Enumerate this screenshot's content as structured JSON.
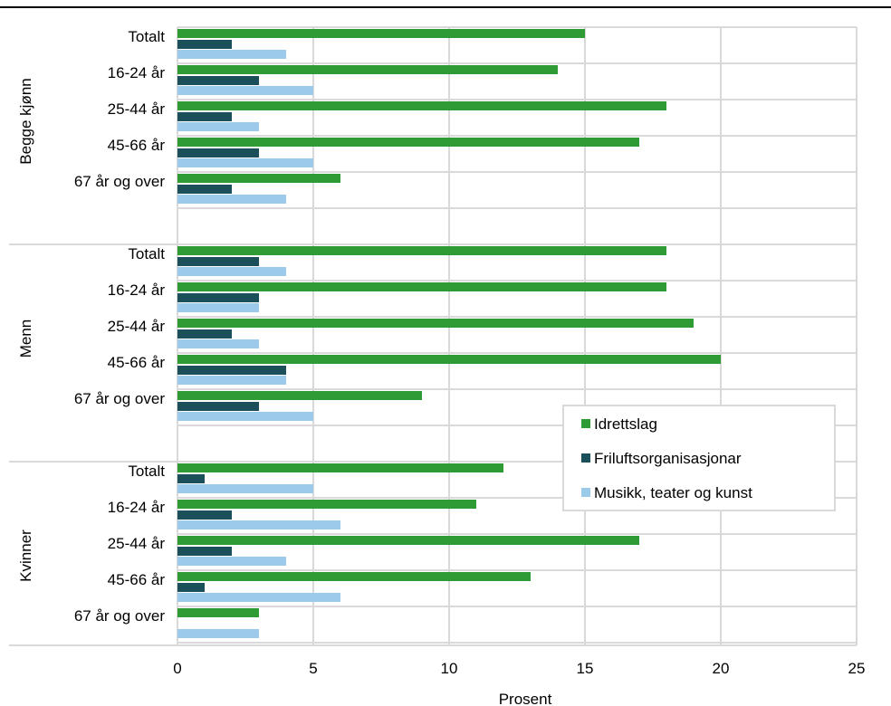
{
  "chart_data": {
    "type": "bar",
    "orientation": "horizontal",
    "title": "",
    "xlabel": "Prosent",
    "ylabel": "",
    "xlim": [
      0,
      25
    ],
    "x_ticks": [
      0,
      5,
      10,
      15,
      20,
      25
    ],
    "grid": true,
    "legend_position": "right",
    "groups": [
      {
        "name": "Begge kjønn",
        "categories": [
          "Totalt",
          "16-24 år",
          "25-44 år",
          "45-66 år",
          "67 år og over"
        ],
        "series": [
          {
            "name": "Idrettslag",
            "values": [
              15,
              14,
              18,
              17,
              6
            ]
          },
          {
            "name": "Friluftsorganisasjonar",
            "values": [
              2,
              3,
              2,
              3,
              2
            ]
          },
          {
            "name": "Musikk, teater og kunst",
            "values": [
              4,
              5,
              3,
              5,
              4
            ]
          }
        ]
      },
      {
        "name": "Menn",
        "categories": [
          "Totalt",
          "16-24 år",
          "25-44 år",
          "45-66 år",
          "67 år og over"
        ],
        "series": [
          {
            "name": "Idrettslag",
            "values": [
              18,
              18,
              19,
              20,
              9
            ]
          },
          {
            "name": "Friluftsorganisasjonar",
            "values": [
              3,
              3,
              2,
              4,
              3
            ]
          },
          {
            "name": "Musikk, teater og kunst",
            "values": [
              4,
              3,
              3,
              4,
              5
            ]
          }
        ]
      },
      {
        "name": "Kvinner",
        "categories": [
          "Totalt",
          "16-24 år",
          "25-44 år",
          "45-66 år",
          "67 år og over"
        ],
        "series": [
          {
            "name": "Idrettslag",
            "values": [
              12,
              11,
              17,
              13,
              3
            ]
          },
          {
            "name": "Friluftsorganisasjonar",
            "values": [
              1,
              2,
              2,
              1,
              0
            ]
          },
          {
            "name": "Musikk, teater og kunst",
            "values": [
              5,
              6,
              4,
              6,
              3
            ]
          }
        ]
      }
    ],
    "colors": {
      "Idrettslag": "#2e9b35",
      "Friluftsorganisasjonar": "#1b4f59",
      "Musikk, teater og kunst": "#9ccaeb"
    }
  }
}
